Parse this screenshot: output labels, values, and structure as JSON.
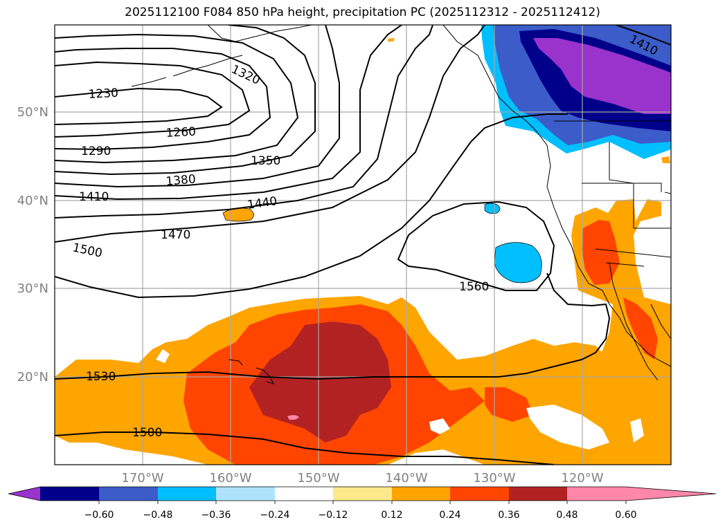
{
  "title": "2025112100 F084 850 hPa height, precipitation PC (2025112312 - 2025112412)",
  "axes": {
    "lat_labels": [
      "50°N",
      "40°N",
      "30°N",
      "20°N"
    ],
    "lon_labels": [
      "170°W",
      "160°W",
      "150°W",
      "140°W",
      "130°W",
      "120°W"
    ]
  },
  "contour_labels": [
    "1230",
    "1260",
    "1290",
    "1320",
    "1350",
    "1380",
    "1410",
    "1410",
    "1440",
    "1470",
    "1500",
    "1560",
    "1530",
    "1500"
  ],
  "colorbar": {
    "colors": [
      "#9933cc",
      "#00008b",
      "#3b5cc9",
      "#00bfff",
      "#aee3fb",
      "#ffffff",
      "#fde98a",
      "#ffa500",
      "#ff4500",
      "#b22222",
      "#ff88aa"
    ],
    "ticks": [
      "−0.60",
      "−0.48",
      "−0.36",
      "−0.24",
      "−0.12",
      "0.12",
      "0.24",
      "0.36",
      "0.48",
      "0.60"
    ]
  }
}
